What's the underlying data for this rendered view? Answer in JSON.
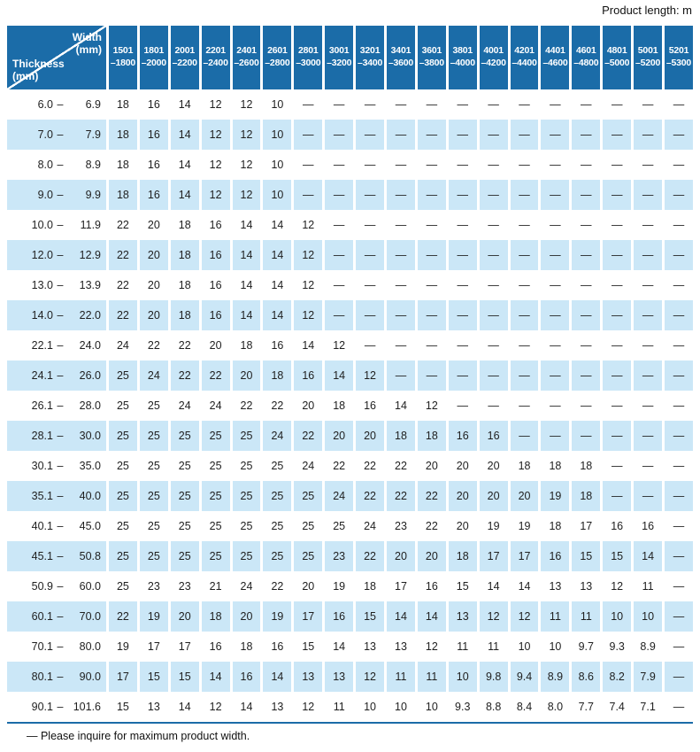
{
  "page": {
    "product_length_label": "Product length: m",
    "footnote": "— Please inquire for maximum product width."
  },
  "colors": {
    "header_blue": "#1b6ca8",
    "row_blue": "#cbe7f7",
    "text": "#1f1f1f"
  },
  "corner": {
    "width_label": "Width",
    "width_unit": "(mm)",
    "thickness_label": "Thickness",
    "thickness_unit": "(mm)"
  },
  "table": {
    "range_dash": "–",
    "no_value": "—",
    "columns": [
      [
        "1501",
        "–1800"
      ],
      [
        "1801",
        "–2000"
      ],
      [
        "2001",
        "–2200"
      ],
      [
        "2201",
        "–2400"
      ],
      [
        "2401",
        "–2600"
      ],
      [
        "2601",
        "–2800"
      ],
      [
        "2801",
        "–3000"
      ],
      [
        "3001",
        "–3200"
      ],
      [
        "3201",
        "–3400"
      ],
      [
        "3401",
        "–3600"
      ],
      [
        "3601",
        "–3800"
      ],
      [
        "3801",
        "–4000"
      ],
      [
        "4001",
        "–4200"
      ],
      [
        "4201",
        "–4400"
      ],
      [
        "4401",
        "–4600"
      ],
      [
        "4601",
        "–4800"
      ],
      [
        "4801",
        "–5000"
      ],
      [
        "5001",
        "–5200"
      ],
      [
        "5201",
        "–5300"
      ]
    ],
    "rows": [
      {
        "min": "6.0",
        "max": "6.9",
        "values": [
          "18",
          "16",
          "14",
          "12",
          "12",
          "10",
          "—",
          "—",
          "—",
          "—",
          "—",
          "—",
          "—",
          "—",
          "—",
          "—",
          "—",
          "—",
          "—"
        ]
      },
      {
        "min": "7.0",
        "max": "7.9",
        "values": [
          "18",
          "16",
          "14",
          "12",
          "12",
          "10",
          "—",
          "—",
          "—",
          "—",
          "—",
          "—",
          "—",
          "—",
          "—",
          "—",
          "—",
          "—",
          "—"
        ]
      },
      {
        "min": "8.0",
        "max": "8.9",
        "values": [
          "18",
          "16",
          "14",
          "12",
          "12",
          "10",
          "—",
          "—",
          "—",
          "—",
          "—",
          "—",
          "—",
          "—",
          "—",
          "—",
          "—",
          "—",
          "—"
        ]
      },
      {
        "min": "9.0",
        "max": "9.9",
        "values": [
          "18",
          "16",
          "14",
          "12",
          "12",
          "10",
          "—",
          "—",
          "—",
          "—",
          "—",
          "—",
          "—",
          "—",
          "—",
          "—",
          "—",
          "—",
          "—"
        ]
      },
      {
        "min": "10.0",
        "max": "11.9",
        "values": [
          "22",
          "20",
          "18",
          "16",
          "14",
          "14",
          "12",
          "—",
          "—",
          "—",
          "—",
          "—",
          "—",
          "—",
          "—",
          "—",
          "—",
          "—",
          "—"
        ]
      },
      {
        "min": "12.0",
        "max": "12.9",
        "values": [
          "22",
          "20",
          "18",
          "16",
          "14",
          "14",
          "12",
          "—",
          "—",
          "—",
          "—",
          "—",
          "—",
          "—",
          "—",
          "—",
          "—",
          "—",
          "—"
        ]
      },
      {
        "min": "13.0",
        "max": "13.9",
        "values": [
          "22",
          "20",
          "18",
          "16",
          "14",
          "14",
          "12",
          "—",
          "—",
          "—",
          "—",
          "—",
          "—",
          "—",
          "—",
          "—",
          "—",
          "—",
          "—"
        ]
      },
      {
        "min": "14.0",
        "max": "22.0",
        "values": [
          "22",
          "20",
          "18",
          "16",
          "14",
          "14",
          "12",
          "—",
          "—",
          "—",
          "—",
          "—",
          "—",
          "—",
          "—",
          "—",
          "—",
          "—",
          "—"
        ]
      },
      {
        "min": "22.1",
        "max": "24.0",
        "values": [
          "24",
          "22",
          "22",
          "20",
          "18",
          "16",
          "14",
          "12",
          "—",
          "—",
          "—",
          "—",
          "—",
          "—",
          "—",
          "—",
          "—",
          "—",
          "—"
        ]
      },
      {
        "min": "24.1",
        "max": "26.0",
        "values": [
          "25",
          "24",
          "22",
          "22",
          "20",
          "18",
          "16",
          "14",
          "12",
          "—",
          "—",
          "—",
          "—",
          "—",
          "—",
          "—",
          "—",
          "—",
          "—"
        ]
      },
      {
        "min": "26.1",
        "max": "28.0",
        "values": [
          "25",
          "25",
          "24",
          "24",
          "22",
          "22",
          "20",
          "18",
          "16",
          "14",
          "12",
          "—",
          "—",
          "—",
          "—",
          "—",
          "—",
          "—",
          "—"
        ]
      },
      {
        "min": "28.1",
        "max": "30.0",
        "values": [
          "25",
          "25",
          "25",
          "25",
          "25",
          "24",
          "22",
          "20",
          "20",
          "18",
          "18",
          "16",
          "16",
          "—",
          "—",
          "—",
          "—",
          "—",
          "—"
        ]
      },
      {
        "min": "30.1",
        "max": "35.0",
        "values": [
          "25",
          "25",
          "25",
          "25",
          "25",
          "25",
          "24",
          "22",
          "22",
          "22",
          "20",
          "20",
          "20",
          "18",
          "18",
          "18",
          "—",
          "—",
          "—"
        ]
      },
      {
        "min": "35.1",
        "max": "40.0",
        "values": [
          "25",
          "25",
          "25",
          "25",
          "25",
          "25",
          "25",
          "24",
          "22",
          "22",
          "22",
          "20",
          "20",
          "20",
          "19",
          "18",
          "—",
          "—",
          "—"
        ]
      },
      {
        "min": "40.1",
        "max": "45.0",
        "values": [
          "25",
          "25",
          "25",
          "25",
          "25",
          "25",
          "25",
          "25",
          "24",
          "23",
          "22",
          "20",
          "19",
          "19",
          "18",
          "17",
          "16",
          "16",
          "—"
        ]
      },
      {
        "min": "45.1",
        "max": "50.8",
        "values": [
          "25",
          "25",
          "25",
          "25",
          "25",
          "25",
          "25",
          "23",
          "22",
          "20",
          "20",
          "18",
          "17",
          "17",
          "16",
          "15",
          "15",
          "14",
          "—"
        ]
      },
      {
        "min": "50.9",
        "max": "60.0",
        "values": [
          "25",
          "23",
          "23",
          "21",
          "24",
          "22",
          "20",
          "19",
          "18",
          "17",
          "16",
          "15",
          "14",
          "14",
          "13",
          "13",
          "12",
          "11",
          "—"
        ]
      },
      {
        "min": "60.1",
        "max": "70.0",
        "values": [
          "22",
          "19",
          "20",
          "18",
          "20",
          "19",
          "17",
          "16",
          "15",
          "14",
          "14",
          "13",
          "12",
          "12",
          "11",
          "11",
          "10",
          "10",
          "—"
        ]
      },
      {
        "min": "70.1",
        "max": "80.0",
        "values": [
          "19",
          "17",
          "17",
          "16",
          "18",
          "16",
          "15",
          "14",
          "13",
          "13",
          "12",
          "11",
          "11",
          "10",
          "10",
          "9.7",
          "9.3",
          "8.9",
          "—"
        ]
      },
      {
        "min": "80.1",
        "max": "90.0",
        "values": [
          "17",
          "15",
          "15",
          "14",
          "16",
          "14",
          "13",
          "13",
          "12",
          "11",
          "11",
          "10",
          "9.8",
          "9.4",
          "8.9",
          "8.6",
          "8.2",
          "7.9",
          "—"
        ]
      },
      {
        "min": "90.1",
        "max": "101.6",
        "values": [
          "15",
          "13",
          "14",
          "12",
          "14",
          "13",
          "12",
          "11",
          "10",
          "10",
          "10",
          "9.3",
          "8.8",
          "8.4",
          "8.0",
          "7.7",
          "7.4",
          "7.1",
          "—"
        ]
      }
    ]
  }
}
